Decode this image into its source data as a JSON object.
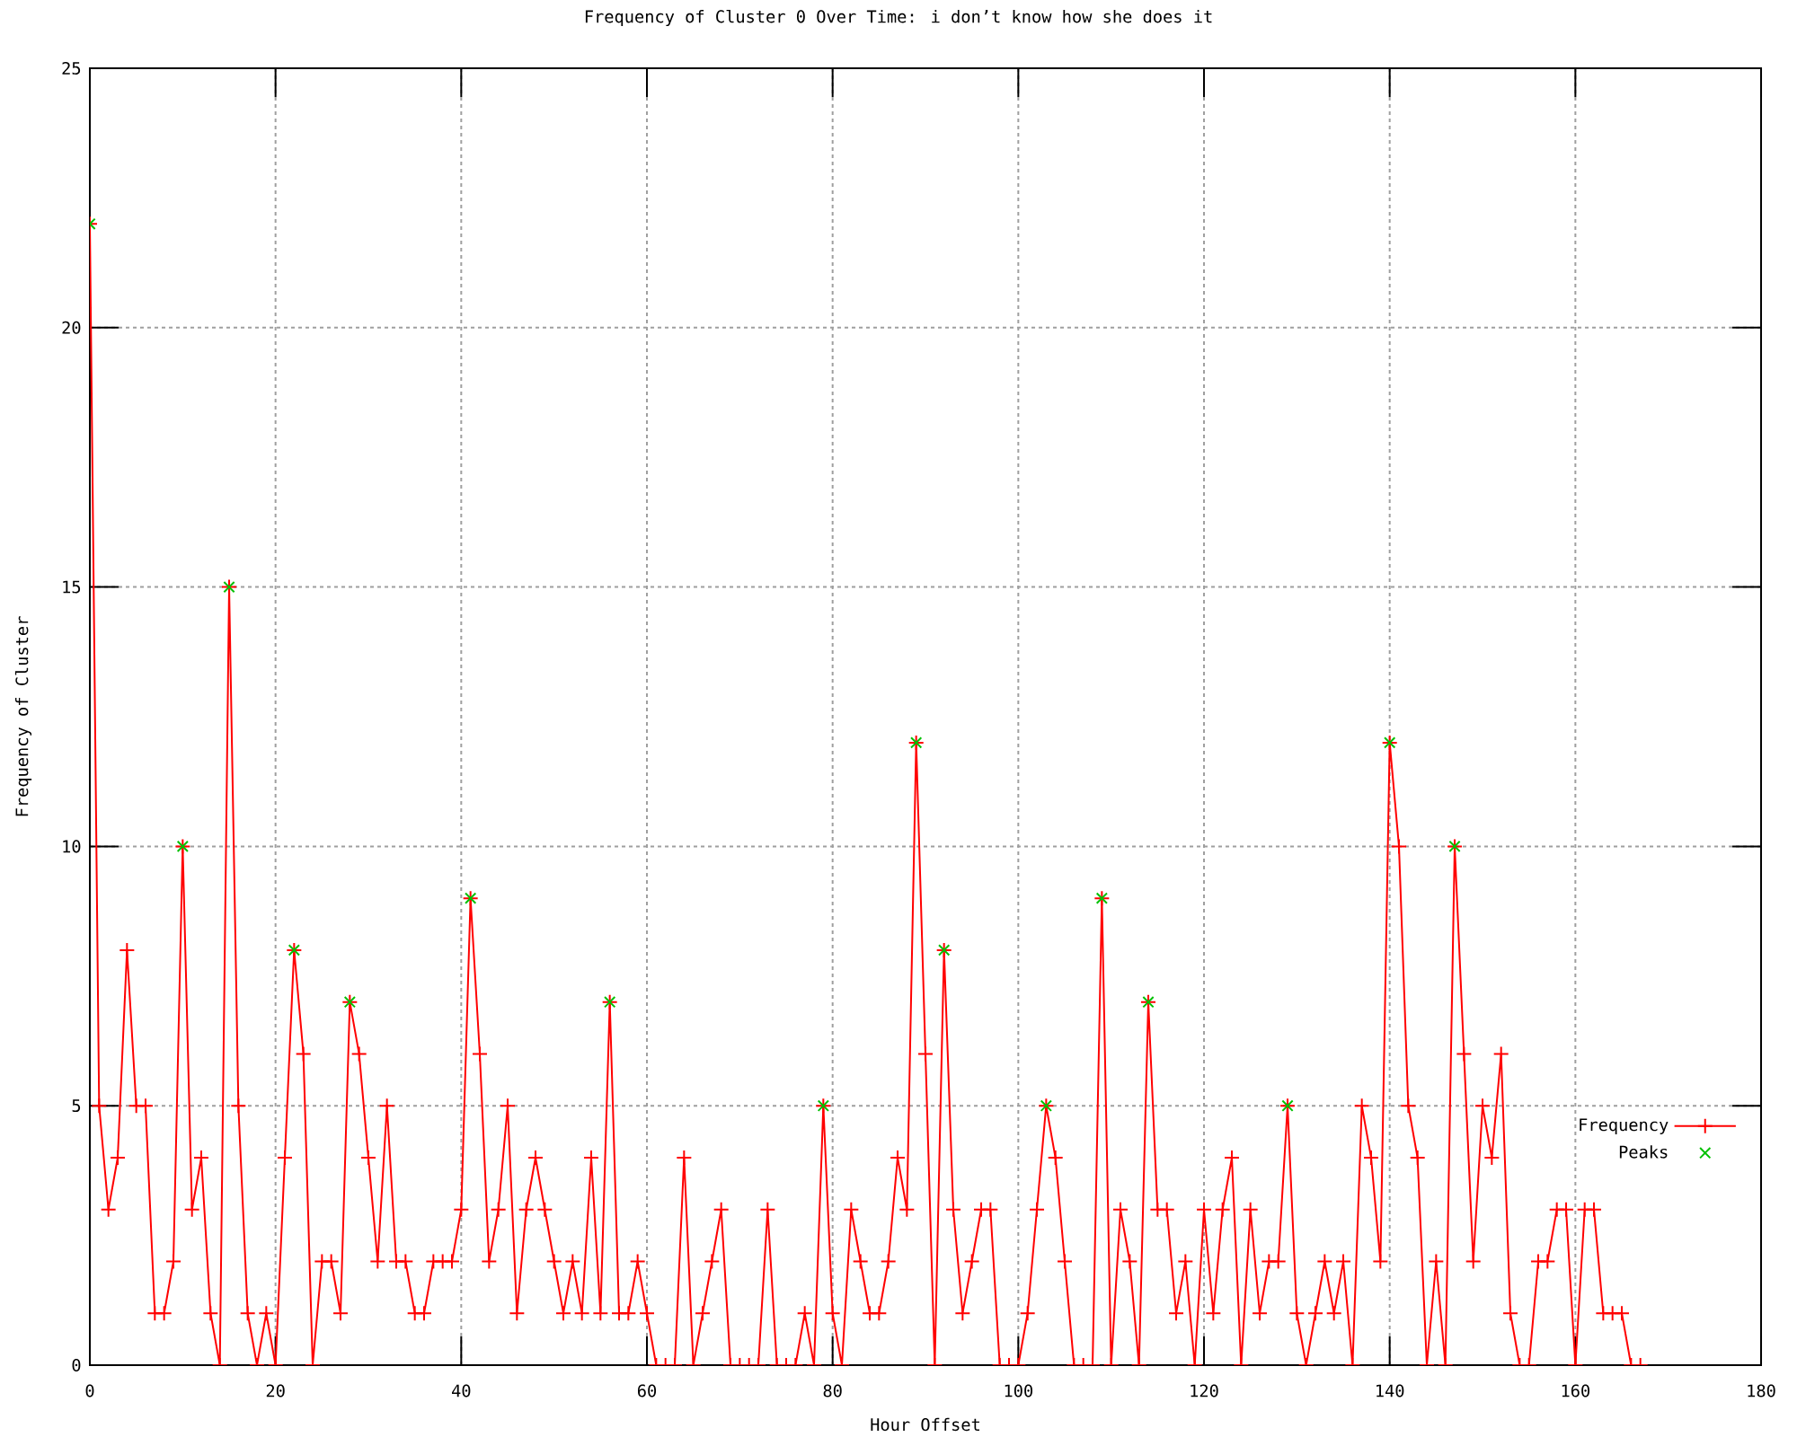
{
  "chart_data": {
    "type": "line",
    "title": "Frequency of Cluster 0 Over Time: i don’t know how she does it",
    "xlabel": "Hour Offset",
    "ylabel": "Frequency of Cluster",
    "x": [
      0,
      1,
      2,
      3,
      4,
      5,
      6,
      7,
      8,
      9,
      10,
      11,
      12,
      13,
      14,
      15,
      16,
      17,
      18,
      19,
      20,
      21,
      22,
      23,
      24,
      25,
      26,
      27,
      28,
      29,
      30,
      31,
      32,
      33,
      34,
      35,
      36,
      37,
      38,
      39,
      40,
      41,
      42,
      43,
      44,
      45,
      46,
      47,
      48,
      49,
      50,
      51,
      52,
      53,
      54,
      55,
      56,
      57,
      58,
      59,
      60,
      61,
      62,
      63,
      64,
      65,
      66,
      67,
      68,
      69,
      70,
      71,
      72,
      73,
      74,
      75,
      76,
      77,
      78,
      79,
      80,
      81,
      82,
      83,
      84,
      85,
      86,
      87,
      88,
      89,
      90,
      91,
      92,
      93,
      94,
      95,
      96,
      97,
      98,
      99,
      100,
      101,
      102,
      103,
      104,
      105,
      106,
      107,
      108,
      109,
      110,
      111,
      112,
      113,
      114,
      115,
      116,
      117,
      118,
      119,
      120,
      121,
      122,
      123,
      124,
      125,
      126,
      127,
      128,
      129,
      130,
      131,
      132,
      133,
      134,
      135,
      136,
      137,
      138,
      139,
      140,
      141,
      142,
      143,
      144,
      145,
      146,
      147,
      148,
      149,
      150,
      151,
      152,
      153,
      154,
      155,
      156,
      157,
      158,
      159,
      160,
      161,
      162,
      163,
      164,
      165,
      166,
      167
    ],
    "series": [
      {
        "name": "Frequency",
        "color": "#ff0000",
        "marker": "cross",
        "values": [
          22,
          5,
          3,
          4,
          8,
          5,
          5,
          1,
          1,
          2,
          10,
          3,
          4,
          1,
          0,
          15,
          5,
          1,
          0,
          1,
          0,
          4,
          8,
          6,
          0,
          2,
          2,
          1,
          7,
          6,
          4,
          2,
          5,
          2,
          2,
          1,
          1,
          2,
          2,
          2,
          3,
          9,
          6,
          2,
          3,
          5,
          1,
          3,
          4,
          3,
          2,
          1,
          2,
          1,
          4,
          1,
          7,
          1,
          1,
          2,
          1,
          0,
          0,
          0,
          4,
          0,
          1,
          2,
          3,
          0,
          0,
          0,
          0,
          3,
          0,
          0,
          0,
          1,
          0,
          5,
          1,
          0,
          3,
          2,
          1,
          1,
          2,
          4,
          3,
          12,
          6,
          0,
          8,
          3,
          1,
          2,
          3,
          3,
          0,
          0,
          0,
          1,
          3,
          5,
          4,
          2,
          0,
          0,
          0,
          9,
          0,
          3,
          2,
          0,
          7,
          3,
          3,
          1,
          2,
          0,
          3,
          1,
          3,
          4,
          0,
          3,
          1,
          2,
          2,
          5,
          1,
          0,
          1,
          2,
          1,
          2,
          0,
          5,
          4,
          2,
          12,
          10,
          5,
          4,
          0,
          2,
          0,
          10,
          6,
          2,
          5,
          4,
          6,
          1,
          0,
          0,
          2,
          2,
          3,
          3,
          0,
          3,
          3,
          1,
          1,
          1,
          0,
          0
        ]
      },
      {
        "name": "Peaks",
        "type": "scatter",
        "color": "#00c000",
        "marker": "cross",
        "x": [
          0,
          10,
          15,
          22,
          28,
          41,
          56,
          79,
          89,
          92,
          103,
          109,
          114,
          129,
          140,
          147
        ],
        "values": [
          22,
          10,
          15,
          8,
          7,
          9,
          7,
          5,
          12,
          8,
          5,
          9,
          7,
          5,
          12,
          10
        ]
      }
    ],
    "xlim": [
      0,
      180
    ],
    "ylim": [
      0,
      25
    ],
    "xticks": [
      0,
      20,
      40,
      60,
      80,
      100,
      120,
      140,
      160,
      180
    ],
    "yticks": [
      0,
      5,
      10,
      15,
      20,
      25
    ],
    "grid": true,
    "legend": "bottom right"
  }
}
